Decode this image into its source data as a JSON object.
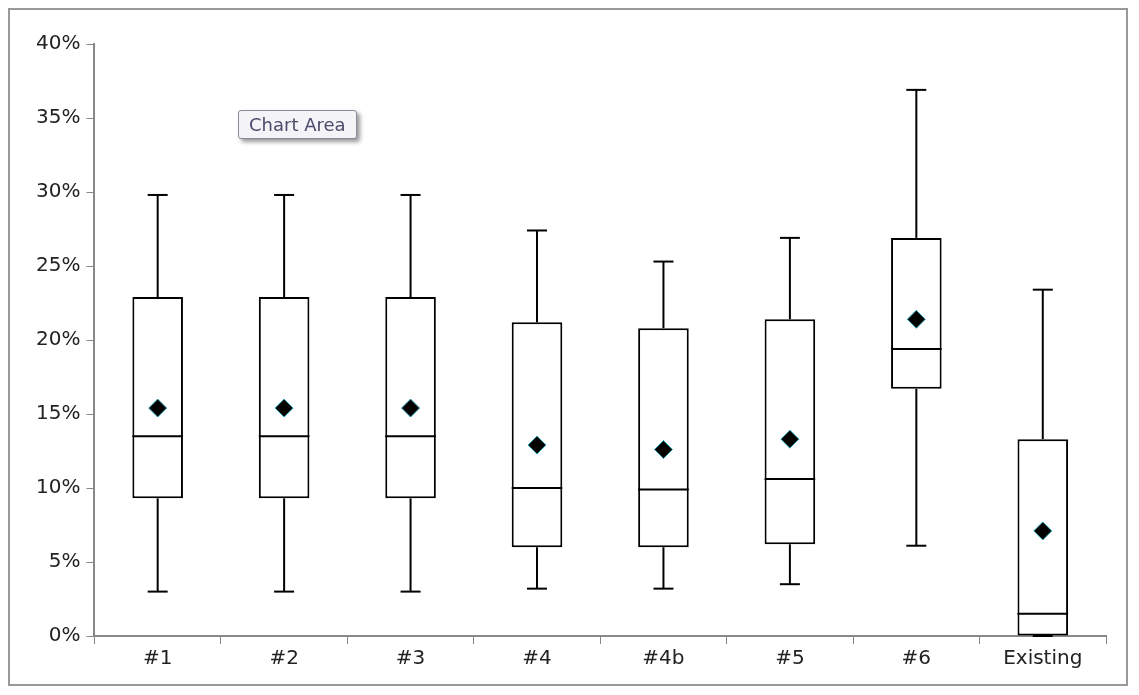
{
  "chart_data": {
    "type": "box",
    "categories": [
      "#1",
      "#2",
      "#3",
      "#4",
      "#4b",
      "#5",
      "#6",
      "Existing"
    ],
    "boxes": [
      {
        "low": 3.0,
        "q1": 9.3,
        "median": 13.5,
        "q3": 22.9,
        "high": 29.8,
        "mean": 15.4
      },
      {
        "low": 3.0,
        "q1": 9.3,
        "median": 13.5,
        "q3": 22.9,
        "high": 29.8,
        "mean": 15.4
      },
      {
        "low": 3.0,
        "q1": 9.3,
        "median": 13.5,
        "q3": 22.9,
        "high": 29.8,
        "mean": 15.4
      },
      {
        "low": 3.2,
        "q1": 6.0,
        "median": 10.0,
        "q3": 21.2,
        "high": 27.4,
        "mean": 12.9
      },
      {
        "low": 3.2,
        "q1": 6.0,
        "median": 9.9,
        "q3": 20.8,
        "high": 25.3,
        "mean": 12.6
      },
      {
        "low": 3.5,
        "q1": 6.2,
        "median": 10.6,
        "q3": 21.4,
        "high": 26.9,
        "mean": 13.3
      },
      {
        "low": 6.1,
        "q1": 16.7,
        "median": 19.4,
        "q3": 26.9,
        "high": 36.9,
        "mean": 21.4
      },
      {
        "low": 0,
        "q1": 0,
        "median": 1.5,
        "q3": 13.3,
        "high": 23.4,
        "mean": 7.1
      }
    ],
    "color": "#000000",
    "ylim": [
      0,
      40
    ],
    "yticks": [
      {
        "value": 0,
        "label": "0%"
      },
      {
        "value": 5,
        "label": "5%"
      },
      {
        "value": 10,
        "label": "10%"
      },
      {
        "value": 15,
        "label": "15%"
      },
      {
        "value": 20,
        "label": "20%"
      },
      {
        "value": 25,
        "label": "25%"
      },
      {
        "value": 30,
        "label": "30%"
      },
      {
        "value": 35,
        "label": "35%"
      },
      {
        "value": 40,
        "label": "40%"
      }
    ],
    "marker": "diamond",
    "grid": false,
    "legend": false,
    "annotations": [
      "Chart Area"
    ]
  }
}
